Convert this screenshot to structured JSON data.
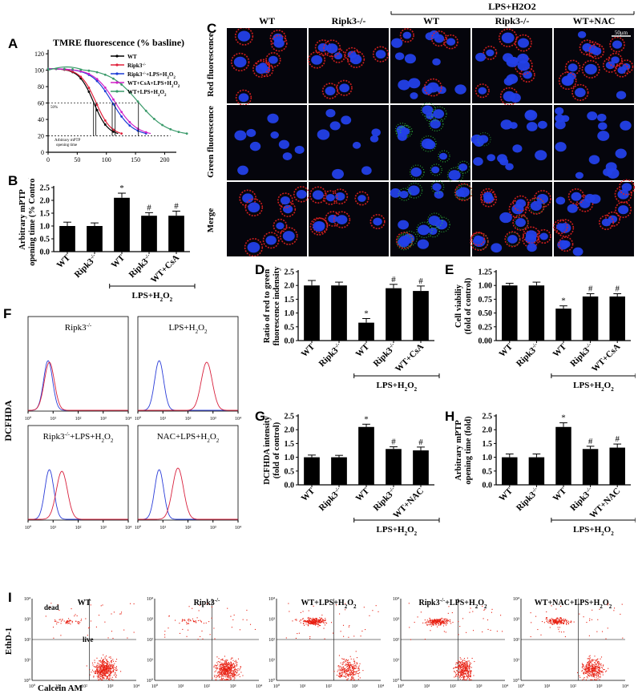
{
  "panels": {
    "A": {
      "label": "A",
      "title": "TMRE fluorescence (% basline)",
      "y_ticks": [
        "0",
        "20",
        "40",
        "60",
        "80",
        "100",
        "120"
      ],
      "x_ticks": [
        "0",
        "50",
        "100",
        "150",
        "200"
      ],
      "annot_50": "50%",
      "annot_arbitrary": "Arbitrary mPTP",
      "annot_opening": "opening time",
      "legend": [
        {
          "name": "WT",
          "color": "#000000"
        },
        {
          "name": "Ripk3-/-",
          "color": "#e0203a"
        },
        {
          "name": "Ripk3-/-+LPS+H2O2",
          "color": "#1a3bd6"
        },
        {
          "name": "WT+CsA+LPS+H2O2",
          "color": "#d020c8"
        },
        {
          "name": "WT+LPS+H2O2",
          "color": "#3a9a6a"
        }
      ],
      "half_times": [
        78,
        82,
        110,
        115,
        155
      ]
    },
    "B": {
      "label": "B",
      "ylabel": "Arbitrary mPTP opening time (% Control)",
      "categories": [
        "WT",
        "Ripk3-/-",
        "WT",
        "Ripk3-/-",
        "WT+CsA"
      ],
      "values": [
        1.0,
        1.0,
        2.1,
        1.4,
        1.4
      ],
      "errors": [
        0.15,
        0.12,
        0.18,
        0.12,
        0.18
      ],
      "marks": [
        "",
        "",
        "*",
        "#",
        "#"
      ],
      "ylim": [
        0,
        2.5
      ],
      "ticks": [
        "0.0",
        "0.5",
        "1.0",
        "1.5",
        "2.0",
        "2.5"
      ],
      "treatment": "LPS+H2O2"
    },
    "C": {
      "label": "C",
      "col_headers": [
        "WT",
        "Ripk3-/-",
        "WT",
        "Ripk3-/-",
        "WT+NAC"
      ],
      "group_header": "LPS+H2O2",
      "row_headers": [
        "Red fluorescence",
        "Green fluorescence",
        "Merge"
      ],
      "scale_bar": "50μm"
    },
    "D": {
      "label": "D",
      "ylabel": "Ratio of red to green fluorescence indensity",
      "categories": [
        "WT",
        "Ripk3-/-",
        "WT",
        "Ripk3-/-",
        "WT+CsA"
      ],
      "values": [
        2.0,
        2.0,
        0.65,
        1.9,
        1.8
      ],
      "errors": [
        0.18,
        0.12,
        0.15,
        0.14,
        0.18
      ],
      "marks": [
        "",
        "",
        "*",
        "#",
        "#"
      ],
      "ylim": [
        0,
        2.5
      ],
      "ticks": [
        "0.0",
        "0.5",
        "1.0",
        "1.5",
        "2.0",
        "2.5"
      ],
      "treatment": "LPS+H2O2"
    },
    "E": {
      "label": "E",
      "ylabel": "Cell viabiliy (fold of control)",
      "categories": [
        "WT",
        "Ripk3-/-",
        "WT",
        "Ripk3-/-",
        "WT+CsA"
      ],
      "values": [
        1.0,
        1.0,
        0.58,
        0.8,
        0.8
      ],
      "errors": [
        0.04,
        0.06,
        0.05,
        0.05,
        0.05
      ],
      "marks": [
        "",
        "",
        "*",
        "#",
        "#"
      ],
      "ylim": [
        0,
        1.25
      ],
      "ticks": [
        "0.00",
        "0.25",
        "0.50",
        "0.75",
        "1.00",
        "1.25"
      ],
      "treatment": "LPS+H2O2"
    },
    "F": {
      "label": "F",
      "ylabel": "DCFHDA",
      "subtitles": [
        "Ripk3-/-",
        "LPS+H2O2",
        "Ripk3-/-+LPS+H2O2",
        "NAC+LPS+H2O2"
      ],
      "x_ticks": [
        "10⁰",
        "10¹",
        "10²",
        "10³",
        "10⁴"
      ],
      "red_peak_decade": [
        0.85,
        2.75,
        1.35,
        1.6
      ],
      "blue_peak_decade": [
        0.8,
        0.85,
        0.85,
        0.85
      ]
    },
    "G": {
      "label": "G",
      "ylabel": "DCFHDA intensity (fold of control)",
      "categories": [
        "WT",
        "Ripk3-/-",
        "WT",
        "Ripk3-/-",
        "WT+NAC"
      ],
      "values": [
        1.0,
        1.0,
        2.1,
        1.3,
        1.25
      ],
      "errors": [
        0.08,
        0.07,
        0.1,
        0.08,
        0.12
      ],
      "marks": [
        "",
        "",
        "*",
        "#",
        "#"
      ],
      "ylim": [
        0,
        2.5
      ],
      "ticks": [
        "0.0",
        "0.5",
        "1.0",
        "1.5",
        "2.0",
        "2.5"
      ],
      "treatment": "LPS+H2O2"
    },
    "H": {
      "label": "H",
      "ylabel": "Arbitrary mPTP opening time (fold)",
      "categories": [
        "WT",
        "Ripk3-/-",
        "WT",
        "Ripk3-/-",
        "WT+NAC"
      ],
      "values": [
        1.0,
        1.0,
        2.1,
        1.3,
        1.35
      ],
      "errors": [
        0.12,
        0.12,
        0.15,
        0.1,
        0.13
      ],
      "marks": [
        "",
        "",
        "*",
        "#",
        "#"
      ],
      "ylim": [
        0,
        2.5
      ],
      "ticks": [
        "0.0",
        "0.5",
        "1.0",
        "1.5",
        "2.0",
        "2.5"
      ],
      "treatment": "LPS+H2O2"
    },
    "I": {
      "label": "I",
      "ylabel": "EthD-1",
      "xlabel": "Calcein AM",
      "dead": "dead",
      "live": "live",
      "titles": [
        "WT",
        "Ripk3-/-",
        "WT+LPS+H2O2",
        "Ripk3-/-+LPS+H2O2",
        "WT+NAC+LPS+H2O2"
      ],
      "ticks": [
        "10⁰",
        "10¹",
        "10²",
        "10³",
        "10⁴"
      ],
      "dead_fraction": [
        0.08,
        0.06,
        0.45,
        0.35,
        0.3
      ]
    }
  }
}
